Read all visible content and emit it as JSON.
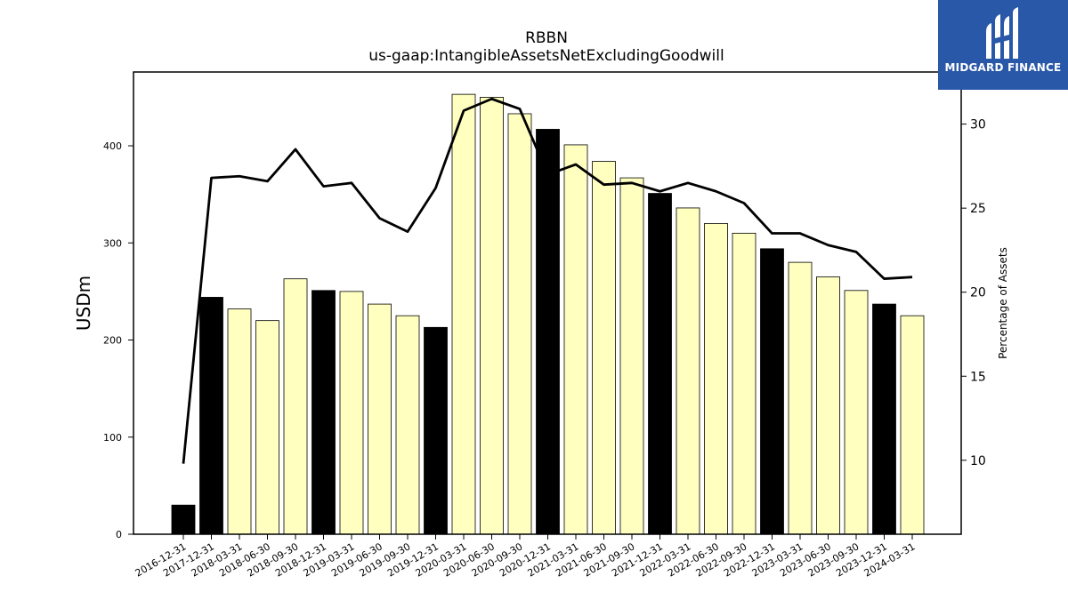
{
  "chart_data": {
    "type": "bar",
    "title": "RBBN",
    "subtitle": "us-gaap:IntangibleAssetsNetExcludingGoodwill",
    "ylabel": "USDm",
    "y2label": "Percentage of Assets",
    "ylim": [
      0,
      476
    ],
    "y2lim": [
      5.6,
      33.1
    ],
    "yticks": [
      0,
      100,
      200,
      300,
      400
    ],
    "y2ticks": [
      10,
      15,
      20,
      25,
      30
    ],
    "categories": [
      "2016-12-31",
      "2017-12-31",
      "2018-03-31",
      "2018-06-30",
      "2018-09-30",
      "2018-12-31",
      "2019-03-31",
      "2019-06-30",
      "2019-09-30",
      "2019-12-31",
      "2020-03-31",
      "2020-06-30",
      "2020-09-30",
      "2020-12-31",
      "2021-03-31",
      "2021-06-30",
      "2021-09-30",
      "2021-12-31",
      "2022-03-31",
      "2022-06-30",
      "2022-09-30",
      "2022-12-31",
      "2023-03-31",
      "2023-06-30",
      "2023-09-30",
      "2023-12-31",
      "2024-03-31"
    ],
    "series": [
      {
        "type": "bar",
        "axis": "left",
        "values": [
          30,
          244,
          232,
          220,
          263,
          251,
          250,
          237,
          225,
          213,
          453,
          450,
          433,
          417,
          401,
          384,
          367,
          351,
          336,
          320,
          310,
          294,
          280,
          265,
          251,
          237,
          225
        ]
      },
      {
        "type": "line",
        "axis": "right",
        "values": [
          9.8,
          26.8,
          26.9,
          26.6,
          28.5,
          26.3,
          26.5,
          24.4,
          23.6,
          26.2,
          30.8,
          31.5,
          30.9,
          27.0,
          27.6,
          26.4,
          26.5,
          26.0,
          26.5,
          26.0,
          25.3,
          23.5,
          23.5,
          22.8,
          22.4,
          20.8,
          20.9
        ]
      }
    ],
    "annual_highlight": [
      true,
      true,
      false,
      false,
      false,
      true,
      false,
      false,
      false,
      true,
      false,
      false,
      false,
      true,
      false,
      false,
      false,
      true,
      false,
      false,
      false,
      true,
      false,
      false,
      false,
      true,
      false
    ],
    "colors": {
      "annual_bar": "#000000",
      "quarter_bar": "#ffffc0",
      "bar_edge": "#000000",
      "line": "#000000"
    },
    "grid": false,
    "legend": "none"
  },
  "logo": {
    "text": "MIDGARD FINANCE",
    "background": "#2a58a8"
  }
}
